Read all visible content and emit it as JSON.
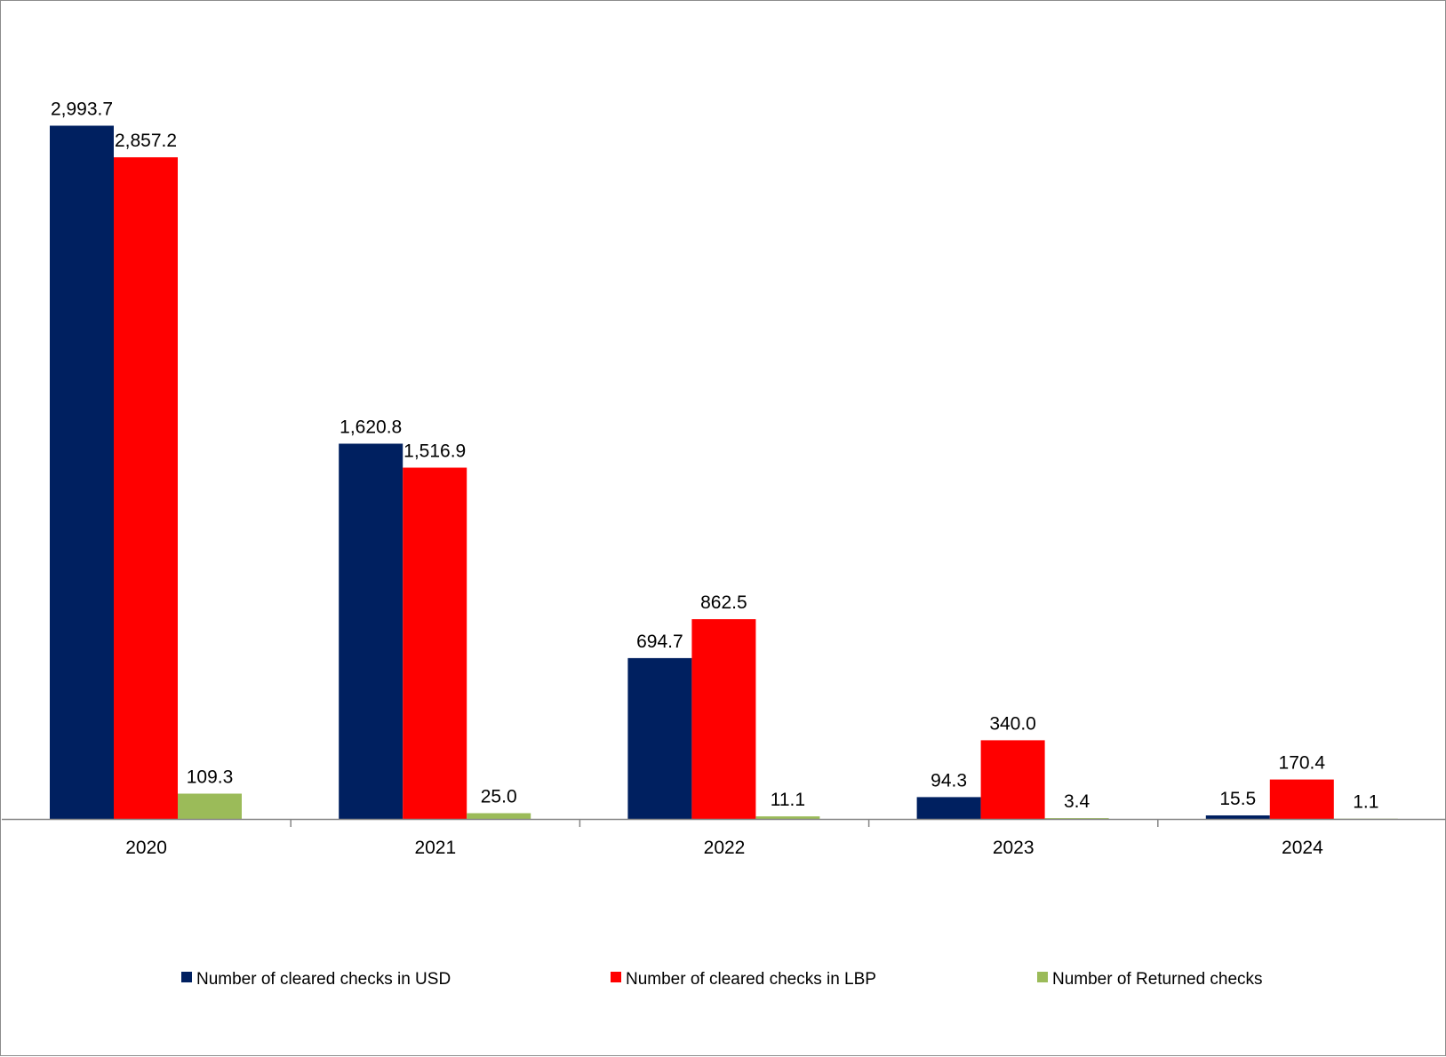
{
  "chart_data": {
    "type": "bar",
    "title": "",
    "xlabel": "",
    "ylabel": "",
    "categories": [
      "2020",
      "2021",
      "2022",
      "2023",
      "2024"
    ],
    "series": [
      {
        "name": "Number of cleared checks in USD",
        "color": "#002060",
        "values": [
          2993.7,
          1620.8,
          694.7,
          94.3,
          15.5
        ],
        "labels": [
          "2,993.7",
          "1,620.8",
          "694.7",
          "94.3",
          "15.5"
        ]
      },
      {
        "name": "Number of cleared checks in LBP",
        "color": "#ff0000",
        "values": [
          2857.2,
          1516.9,
          862.5,
          340.0,
          170.4
        ],
        "labels": [
          "2,857.2",
          "1,516.9",
          "862.5",
          "340.0",
          "170.4"
        ]
      },
      {
        "name": "Number of Returned checks",
        "color": "#9bbb59",
        "values": [
          109.3,
          25.0,
          11.1,
          3.4,
          1.1
        ],
        "labels": [
          "109.3",
          "25.0",
          "11.1",
          "3.4",
          "1.1"
        ]
      }
    ],
    "ylim": [
      0,
      3400
    ],
    "grid": false,
    "legend_position": "bottom"
  }
}
